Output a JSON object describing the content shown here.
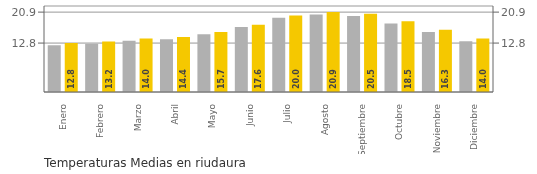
{
  "chart_data": {
    "type": "bar",
    "title": "Temperaturas Medias en riudaura",
    "categories": [
      "Enero",
      "Febrero",
      "Marzo",
      "Abril",
      "Mayo",
      "Junio",
      "Julio",
      "Agosto",
      "Septiembre",
      "Octubre",
      "Noviembre",
      "Diciembre"
    ],
    "series": [
      {
        "color": "#B0B0B0",
        "values": [
          12.2,
          12.6,
          13.4,
          13.8,
          15.1,
          17.0,
          19.4,
          20.3,
          19.9,
          17.9,
          15.7,
          13.3
        ]
      },
      {
        "color": "#F5C800",
        "values": [
          12.8,
          13.2,
          14.0,
          14.4,
          15.7,
          17.6,
          20.0,
          20.9,
          20.5,
          18.5,
          16.3,
          14.0
        ],
        "value_labels": [
          "12.8",
          "13.2",
          "14.0",
          "14.4",
          "15.7",
          "17.6",
          "20.0",
          "20.9",
          "20.5",
          "18.5",
          "16.3",
          "14.0"
        ]
      }
    ],
    "ylim": [
      0,
      22.5
    ],
    "yticks": [
      12.8,
      20.9
    ],
    "y2lim": [
      0,
      22.5
    ],
    "y2ticks": [
      12.8,
      20.9
    ],
    "grid": true
  }
}
